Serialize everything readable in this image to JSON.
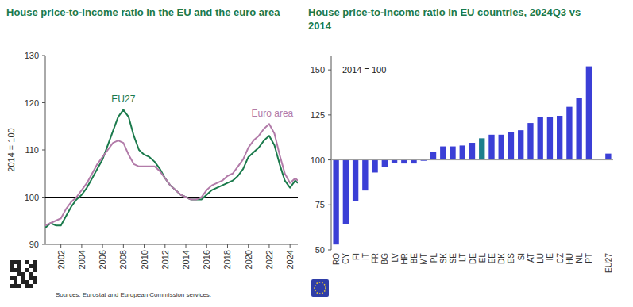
{
  "chart_data": [
    {
      "type": "line",
      "title": "House price-to-income ratio in the EU and the euro area",
      "y_label": "2014 = 100",
      "source": "Sources: Eurostat and European Commission services.",
      "x": [
        2000.5,
        2001,
        2001.5,
        2002,
        2002.5,
        2003,
        2003.5,
        2004,
        2004.5,
        2005,
        2005.5,
        2006,
        2006.5,
        2007,
        2007.5,
        2008,
        2008.5,
        2009,
        2009.5,
        2010,
        2010.5,
        2011,
        2011.5,
        2012,
        2012.5,
        2013,
        2013.5,
        2014,
        2014.5,
        2015,
        2015.5,
        2016,
        2016.5,
        2017,
        2017.5,
        2018,
        2018.5,
        2019,
        2019.5,
        2020,
        2020.5,
        2021,
        2021.5,
        2022,
        2022.5,
        2023,
        2023.5,
        2024,
        2024.5,
        2024.75
      ],
      "xlim": [
        2000.5,
        2024.75
      ],
      "xticks": [
        2002,
        2004,
        2006,
        2008,
        2010,
        2012,
        2014,
        2016,
        2018,
        2020,
        2022,
        2024
      ],
      "ylim": [
        90,
        130
      ],
      "yticks": [
        90,
        100,
        110,
        120,
        130
      ],
      "baseline": 100,
      "grid": false,
      "series": [
        {
          "name": "EU27",
          "color": "#1b7a4c",
          "values": [
            93.5,
            94.5,
            94,
            94,
            96,
            98,
            99.5,
            100.5,
            102,
            104,
            106,
            108,
            111,
            114,
            117,
            118.5,
            117,
            113,
            110,
            109,
            108.5,
            107.5,
            106,
            104,
            102.5,
            101.5,
            100.5,
            100,
            99.5,
            99.5,
            99.5,
            100.5,
            101.5,
            102,
            102.5,
            103,
            103.5,
            104.5,
            106,
            108.5,
            109.5,
            110.5,
            112,
            113,
            111,
            107,
            103.5,
            102,
            103.5,
            103
          ]
        },
        {
          "name": "Euro area",
          "color": "#b27ba9",
          "values": [
            94,
            94.5,
            95,
            95.5,
            97.5,
            99,
            100,
            101.5,
            103,
            105,
            107,
            108.5,
            110,
            111.5,
            112,
            111.5,
            109,
            107,
            106.5,
            106.5,
            106.5,
            106.5,
            105.5,
            104,
            102.5,
            101.5,
            100.5,
            100,
            99.5,
            99.5,
            100,
            101.5,
            102.5,
            103,
            103.5,
            104.5,
            105,
            106.5,
            108,
            110.5,
            112,
            113,
            114.5,
            115.5,
            113.5,
            109,
            105,
            103,
            104,
            103.5
          ]
        }
      ]
    },
    {
      "type": "bar",
      "title": "House price-to-income ratio in EU countries, 2024Q3 vs 2014",
      "annotation": "2014 = 100",
      "categories": [
        "RO",
        "CY",
        "FI",
        "IT",
        "FR",
        "BG",
        "LV",
        "HR",
        "BE",
        "MT",
        "PL",
        "SK",
        "SE",
        "LT",
        "DE",
        "EL",
        "EE",
        "DK",
        "ES",
        "SI",
        "AT",
        "LU",
        "IE",
        "CZ",
        "HU",
        "NL",
        "PT",
        null,
        "EU27"
      ],
      "values": [
        53,
        64.5,
        77,
        83,
        93,
        96,
        98.5,
        98,
        98,
        99.5,
        104.5,
        107.5,
        107.5,
        108,
        109.5,
        112,
        114,
        114,
        115.5,
        116.5,
        120.5,
        124,
        124,
        124.5,
        129.5,
        134.5,
        152,
        null,
        103.5
      ],
      "colors": [
        "#3b3fd6",
        "#3b3fd6",
        "#3b3fd6",
        "#3b3fd6",
        "#3b3fd6",
        "#3b3fd6",
        "#3b3fd6",
        "#3b3fd6",
        "#3b3fd6",
        "#3b3fd6",
        "#3b3fd6",
        "#3b3fd6",
        "#3b3fd6",
        "#3b3fd6",
        "#3b3fd6",
        "#1d7f8c",
        "#3b3fd6",
        "#3b3fd6",
        "#3b3fd6",
        "#3b3fd6",
        "#3b3fd6",
        "#3b3fd6",
        "#3b3fd6",
        "#3b3fd6",
        "#3b3fd6",
        "#3b3fd6",
        "#3b3fd6",
        null,
        "#3b3fd6"
      ],
      "ylim": [
        50,
        158
      ],
      "yticks": [
        50,
        75,
        100,
        125,
        150
      ],
      "baseline": 100,
      "grid": false
    }
  ]
}
